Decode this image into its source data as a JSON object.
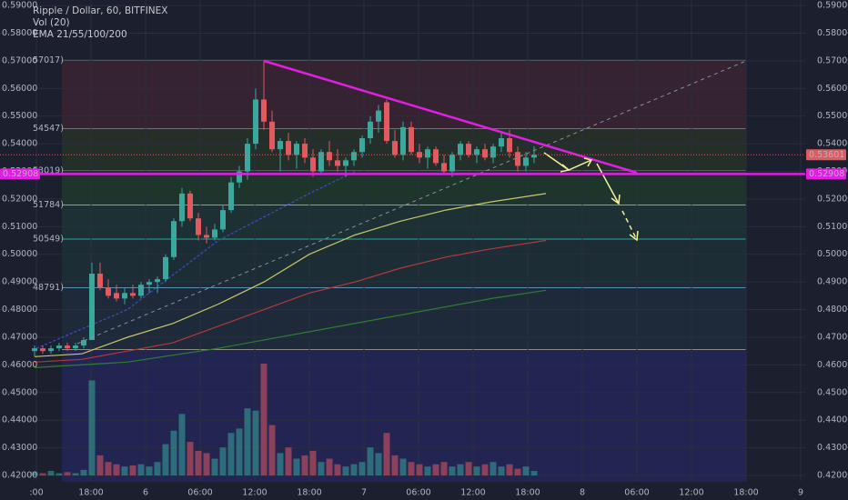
{
  "chart_data": {
    "type": "candlestick",
    "title": "Ripple / Dollar, 60, BITFINEX",
    "indicators": [
      "Vol (20)",
      "EMA 21/55/100/200"
    ],
    "xlim": [
      -4,
      84.5
    ],
    "ylim": [
      0.4177,
      0.592
    ],
    "vlim": [
      0,
      100
    ],
    "up_color": "#3aa89c",
    "down_color": "#e05a5f",
    "grid": true,
    "yticks": [
      {
        "value": 0.59,
        "label": "0.59000"
      },
      {
        "value": 0.58,
        "label": "0.58000"
      },
      {
        "value": 0.57,
        "label": "0.57000"
      },
      {
        "value": 0.56,
        "label": "0.56000"
      },
      {
        "value": 0.55,
        "label": "0.55000"
      },
      {
        "value": 0.54,
        "label": "0.54000"
      },
      {
        "value": 0.53,
        "label": "0.53000"
      },
      {
        "value": 0.52,
        "label": "0.52000"
      },
      {
        "value": 0.51,
        "label": "0.51000"
      },
      {
        "value": 0.5,
        "label": "0.50000"
      },
      {
        "value": 0.49,
        "label": "0.49000"
      },
      {
        "value": 0.48,
        "label": "0.48000"
      },
      {
        "value": 0.47,
        "label": "0.47000"
      },
      {
        "value": 0.46,
        "label": "0.46000"
      },
      {
        "value": 0.45,
        "label": "0.45000"
      },
      {
        "value": 0.44,
        "label": "0.44000"
      },
      {
        "value": 0.43,
        "label": "0.43000"
      },
      {
        "value": 0.42,
        "label": "0.42000"
      }
    ],
    "xticks": [
      {
        "value": 0,
        "label": ":00"
      },
      {
        "value": 6,
        "label": "18:00"
      },
      {
        "value": 12,
        "label": "6"
      },
      {
        "value": 18,
        "label": "06:00"
      },
      {
        "value": 24,
        "label": "12:00"
      },
      {
        "value": 30,
        "label": "18:00"
      },
      {
        "value": 36,
        "label": "7"
      },
      {
        "value": 42,
        "label": "06:00"
      },
      {
        "value": 48,
        "label": "12:00"
      },
      {
        "value": 54,
        "label": "18:00"
      },
      {
        "value": 60,
        "label": "8"
      },
      {
        "value": 66,
        "label": "06:00"
      },
      {
        "value": 72,
        "label": "12:00"
      },
      {
        "value": 78,
        "label": "18:00"
      },
      {
        "value": 84,
        "label": "9"
      }
    ],
    "x": [
      -0.2,
      0.7,
      1.6,
      2.5,
      3.4,
      4.3,
      5.2,
      6.1,
      7,
      7.9,
      8.8,
      9.7,
      10.6,
      11.5,
      12.4,
      13.3,
      14.2,
      15.1,
      16,
      16.9,
      17.8,
      18.7,
      19.6,
      20.5,
      21.4,
      22.3,
      23.2,
      24.1,
      25,
      25.9,
      26.8,
      27.7,
      28.6,
      29.5,
      30.4,
      31.3,
      32.2,
      33.1,
      34,
      34.9,
      35.8,
      36.7,
      37.6,
      38.5,
      39.4,
      40.3,
      41.2,
      42.1,
      43,
      43.9,
      44.8,
      45.7,
      46.6,
      47.5,
      48.4,
      49.3,
      50.2,
      51.1,
      52,
      52.9,
      53.8,
      54.7
    ],
    "open": [
      0.465,
      0.466,
      0.465,
      0.466,
      0.467,
      0.466,
      0.467,
      0.469,
      0.493,
      0.488,
      0.486,
      0.484,
      0.486,
      0.485,
      0.489,
      0.49,
      0.491,
      0.499,
      0.512,
      0.522,
      0.513,
      0.507,
      0.506,
      0.509,
      0.516,
      0.526,
      0.53,
      0.54,
      0.556,
      0.548,
      0.538,
      0.541,
      0.536,
      0.54,
      0.535,
      0.53,
      0.537,
      0.534,
      0.532,
      0.534,
      0.537,
      0.542,
      0.548,
      0.555,
      0.541,
      0.536,
      0.546,
      0.537,
      0.535,
      0.538,
      0.533,
      0.53,
      0.536,
      0.54,
      0.536,
      0.538,
      0.535,
      0.539,
      0.542,
      0.537,
      0.532,
      0.535
    ],
    "high": [
      0.467,
      0.467,
      0.467,
      0.468,
      0.468,
      0.468,
      0.47,
      0.497,
      0.497,
      0.491,
      0.489,
      0.488,
      0.489,
      0.49,
      0.491,
      0.492,
      0.5,
      0.513,
      0.524,
      0.523,
      0.515,
      0.51,
      0.511,
      0.518,
      0.528,
      0.532,
      0.542,
      0.56,
      0.57,
      0.552,
      0.542,
      0.544,
      0.541,
      0.542,
      0.538,
      0.538,
      0.541,
      0.538,
      0.535,
      0.538,
      0.543,
      0.55,
      0.554,
      0.556,
      0.545,
      0.548,
      0.548,
      0.54,
      0.539,
      0.539,
      0.536,
      0.537,
      0.541,
      0.541,
      0.539,
      0.54,
      0.54,
      0.544,
      0.545,
      0.539,
      0.537,
      0.539
    ],
    "low": [
      0.463,
      0.464,
      0.464,
      0.465,
      0.465,
      0.465,
      0.466,
      0.469,
      0.487,
      0.484,
      0.483,
      0.482,
      0.484,
      0.484,
      0.486,
      0.486,
      0.49,
      0.498,
      0.51,
      0.512,
      0.505,
      0.504,
      0.505,
      0.508,
      0.515,
      0.524,
      0.527,
      0.538,
      0.545,
      0.537,
      0.53,
      0.534,
      0.531,
      0.533,
      0.528,
      0.529,
      0.532,
      0.53,
      0.528,
      0.532,
      0.535,
      0.54,
      0.544,
      0.54,
      0.535,
      0.534,
      0.536,
      0.533,
      0.531,
      0.532,
      0.529,
      0.528,
      0.534,
      0.535,
      0.533,
      0.534,
      0.533,
      0.537,
      0.535,
      0.53,
      0.53,
      0.533
    ],
    "close": [
      0.466,
      0.465,
      0.466,
      0.467,
      0.466,
      0.467,
      0.469,
      0.493,
      0.488,
      0.485,
      0.484,
      0.486,
      0.485,
      0.489,
      0.49,
      0.491,
      0.499,
      0.512,
      0.522,
      0.513,
      0.507,
      0.506,
      0.509,
      0.516,
      0.526,
      0.53,
      0.54,
      0.556,
      0.548,
      0.538,
      0.541,
      0.536,
      0.54,
      0.535,
      0.53,
      0.537,
      0.534,
      0.532,
      0.534,
      0.537,
      0.542,
      0.548,
      0.552,
      0.541,
      0.536,
      0.546,
      0.537,
      0.535,
      0.538,
      0.533,
      0.53,
      0.536,
      0.54,
      0.536,
      0.538,
      0.535,
      0.539,
      0.542,
      0.537,
      0.532,
      0.535,
      0.536
    ],
    "volume": [
      3,
      2,
      4,
      2,
      3,
      2,
      5,
      85,
      18,
      12,
      10,
      8,
      9,
      10,
      8,
      12,
      28,
      40,
      55,
      30,
      22,
      20,
      15,
      25,
      38,
      42,
      60,
      58,
      100,
      45,
      20,
      25,
      15,
      18,
      22,
      12,
      15,
      10,
      8,
      10,
      12,
      25,
      20,
      38,
      18,
      15,
      12,
      10,
      8,
      10,
      12,
      8,
      10,
      12,
      8,
      10,
      12,
      8,
      10,
      6,
      8,
      4
    ],
    "series": [
      {
        "color": "#3b4fc4",
        "x": [
          0,
          10,
          20,
          30,
          35
        ],
        "values": [
          0.466,
          0.48,
          0.505,
          0.522,
          0.53
        ]
      },
      {
        "color": "#c8c86a",
        "x": [
          -0.2,
          5,
          10,
          15,
          20,
          25,
          30,
          35,
          40,
          45,
          50,
          56
        ],
        "values": [
          0.463,
          0.464,
          0.47,
          0.475,
          0.482,
          0.49,
          0.5,
          0.507,
          0.512,
          0.516,
          0.519,
          0.522
        ]
      },
      {
        "color": "#b03a3a",
        "x": [
          -0.2,
          5,
          10,
          15,
          20,
          25,
          30,
          35,
          40,
          45,
          50,
          56
        ],
        "values": [
          0.461,
          0.462,
          0.465,
          0.468,
          0.474,
          0.48,
          0.486,
          0.49,
          0.495,
          0.499,
          0.502,
          0.505
        ]
      },
      {
        "color": "#2e7d32",
        "x": [
          -0.2,
          10,
          20,
          30,
          40,
          50,
          56
        ],
        "values": [
          0.459,
          0.461,
          0.466,
          0.472,
          0.478,
          0.484,
          0.487
        ]
      }
    ],
    "fib_levels": [
      {
        "value": 0.57017,
        "label": "57017)",
        "color": "#8a8a8a"
      },
      {
        "value": 0.54547,
        "label": "54547)",
        "color": "#c0504d"
      },
      {
        "value": 0.53019,
        "label": "53019)",
        "color": "#4caf50"
      },
      {
        "value": 0.51784,
        "label": "51784)",
        "color": "#66bb6a"
      },
      {
        "value": 0.50549,
        "label": "50549)",
        "color": "#26a69a"
      },
      {
        "value": 0.48791,
        "label": "48791)",
        "color": "#5b8fb0"
      }
    ],
    "fib_base": 0.46557,
    "fib_xlim": [
      2.8,
      78
    ],
    "last_price": {
      "value": 0.53601,
      "label": "0.53601",
      "color": "#e05a5f"
    },
    "support": {
      "value": 0.52908,
      "label": "0.52908",
      "color": "#e020e0"
    }
  }
}
